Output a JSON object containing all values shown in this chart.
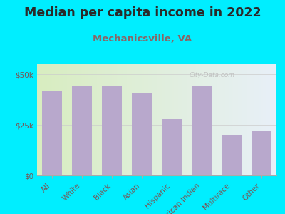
{
  "title": "Median per capita income in 2022",
  "subtitle": "Mechanicsville, VA",
  "categories": [
    "All",
    "White",
    "Black",
    "Asian",
    "Hispanic",
    "American Indian",
    "Multirace",
    "Other"
  ],
  "values": [
    42000,
    44000,
    44000,
    41000,
    28000,
    44500,
    20000,
    22000
  ],
  "bar_color": "#b8a8cc",
  "background_outer": "#00eeff",
  "title_color": "#2a2a2a",
  "subtitle_color": "#886666",
  "tick_label_color": "#775555",
  "axis_color": "#aaaaaa",
  "ytick_labels": [
    "$0",
    "$25k",
    "$50k"
  ],
  "ytick_values": [
    0,
    25000,
    50000
  ],
  "ylim": [
    0,
    55000
  ],
  "watermark": "City-Data.com",
  "title_fontsize": 12.5,
  "subtitle_fontsize": 9.5,
  "tick_fontsize": 7.5
}
